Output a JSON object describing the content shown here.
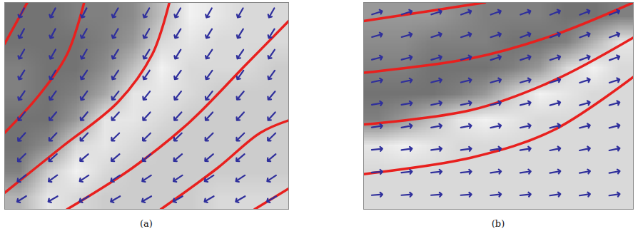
{
  "chart_data": [
    {
      "type": "quiver",
      "caption": "(a)",
      "xlim": [
        0,
        100
      ],
      "ylim": [
        0,
        100
      ],
      "tick_labels": false,
      "image": {
        "range": [
          0,
          1
        ],
        "rows": [
          [
            0.45,
            0.45,
            0.5,
            0.5,
            0.55,
            0.75,
            0.95,
            0.9,
            0.85,
            0.85
          ],
          [
            0.45,
            0.45,
            0.45,
            0.5,
            0.6,
            0.85,
            0.9,
            0.85,
            0.85,
            0.85
          ],
          [
            0.5,
            0.45,
            0.45,
            0.55,
            0.75,
            0.95,
            0.85,
            0.85,
            0.85,
            0.8
          ],
          [
            0.5,
            0.45,
            0.5,
            0.65,
            0.9,
            0.9,
            0.85,
            0.8,
            0.8,
            0.8
          ],
          [
            0.45,
            0.45,
            0.6,
            0.9,
            0.9,
            0.85,
            0.8,
            0.8,
            0.8,
            0.8
          ],
          [
            0.45,
            0.55,
            0.85,
            0.9,
            0.85,
            0.8,
            0.8,
            0.8,
            0.8,
            0.8
          ],
          [
            0.5,
            0.8,
            0.95,
            0.85,
            0.8,
            0.8,
            0.8,
            0.8,
            0.8,
            0.8
          ],
          [
            0.7,
            0.9,
            0.85,
            0.8,
            0.8,
            0.8,
            0.8,
            0.85,
            0.85,
            0.85
          ]
        ]
      },
      "arrows": {
        "color": "#2f2f9c",
        "x": [
          6,
          17,
          28,
          39,
          50,
          61,
          72,
          83,
          94
        ],
        "y": [
          95,
          85,
          75,
          65,
          55,
          45,
          35,
          25,
          15,
          5
        ],
        "angles": [
          [
            208,
            208,
            208,
            210,
            210,
            210,
            210,
            210,
            210
          ],
          [
            208,
            208,
            210,
            210,
            210,
            212,
            212,
            212,
            212
          ],
          [
            210,
            210,
            210,
            212,
            212,
            212,
            214,
            214,
            214
          ],
          [
            212,
            212,
            214,
            214,
            214,
            216,
            216,
            216,
            216
          ],
          [
            214,
            216,
            216,
            218,
            218,
            218,
            218,
            220,
            220
          ],
          [
            218,
            220,
            220,
            222,
            222,
            222,
            222,
            222,
            222
          ],
          [
            222,
            224,
            224,
            226,
            226,
            226,
            226,
            226,
            226
          ],
          [
            226,
            228,
            230,
            230,
            230,
            230,
            230,
            230,
            230
          ],
          [
            232,
            234,
            236,
            236,
            236,
            236,
            236,
            236,
            236
          ],
          [
            238,
            240,
            240,
            240,
            240,
            240,
            240,
            240,
            240
          ]
        ]
      },
      "curves": {
        "color": "#e8201e",
        "lines": [
          {
            "x": [
              0,
              8
            ],
            "y": [
              80,
              100
            ]
          },
          {
            "x": [
              0,
              12,
              22,
              28
            ],
            "y": [
              37,
              55,
              75,
              100
            ]
          },
          {
            "x": [
              0,
              20,
              40,
              52,
              58
            ],
            "y": [
              8,
              30,
              52,
              75,
              100
            ]
          },
          {
            "x": [
              22,
              45,
              65,
              85,
              100
            ],
            "y": [
              0,
              20,
              42,
              70,
              91
            ]
          },
          {
            "x": [
              55,
              75,
              90,
              100
            ],
            "y": [
              0,
              20,
              37,
              43
            ]
          },
          {
            "x": [
              88,
              100
            ],
            "y": [
              0,
              10
            ]
          }
        ]
      }
    },
    {
      "type": "quiver",
      "caption": "(b)",
      "xlim": [
        0,
        100
      ],
      "ylim": [
        0,
        100
      ],
      "tick_labels": false,
      "image": {
        "range": [
          0,
          1
        ],
        "rows": [
          [
            0.6,
            0.6,
            0.6,
            0.55,
            0.5,
            0.5,
            0.5,
            0.45,
            0.45,
            0.5
          ],
          [
            0.55,
            0.55,
            0.5,
            0.5,
            0.5,
            0.45,
            0.45,
            0.5,
            0.7,
            0.9
          ],
          [
            0.5,
            0.5,
            0.45,
            0.45,
            0.45,
            0.5,
            0.6,
            0.85,
            0.95,
            0.85
          ],
          [
            0.45,
            0.45,
            0.45,
            0.5,
            0.6,
            0.8,
            0.95,
            0.9,
            0.85,
            0.85
          ],
          [
            0.5,
            0.6,
            0.75,
            0.9,
            0.95,
            0.9,
            0.85,
            0.85,
            0.85,
            0.85
          ],
          [
            0.9,
            0.95,
            0.9,
            0.85,
            0.85,
            0.85,
            0.85,
            0.85,
            0.85,
            0.85
          ],
          [
            0.85,
            0.85,
            0.85,
            0.85,
            0.85,
            0.85,
            0.85,
            0.85,
            0.85,
            0.85
          ],
          [
            0.85,
            0.85,
            0.85,
            0.85,
            0.85,
            0.85,
            0.85,
            0.85,
            0.85,
            0.85
          ]
        ]
      },
      "arrows": {
        "color": "#2f2f9c",
        "x": [
          5,
          16,
          27,
          38,
          49,
          60,
          71,
          82,
          93
        ],
        "y": [
          95,
          84,
          73,
          62,
          51,
          40,
          29,
          18,
          7
        ],
        "angles": [
          [
            72,
            72,
            72,
            70,
            70,
            70,
            68,
            68,
            68
          ],
          [
            74,
            74,
            72,
            72,
            72,
            70,
            70,
            70,
            70
          ],
          [
            76,
            76,
            74,
            74,
            72,
            72,
            72,
            70,
            70
          ],
          [
            78,
            78,
            76,
            76,
            74,
            74,
            72,
            72,
            72
          ],
          [
            80,
            80,
            78,
            78,
            76,
            76,
            74,
            74,
            74
          ],
          [
            82,
            80,
            80,
            80,
            78,
            78,
            76,
            76,
            76
          ],
          [
            84,
            82,
            82,
            82,
            80,
            80,
            78,
            78,
            78
          ],
          [
            86,
            84,
            84,
            84,
            82,
            82,
            80,
            80,
            80
          ],
          [
            86,
            86,
            86,
            86,
            84,
            84,
            82,
            82,
            82
          ]
        ]
      },
      "curves": {
        "color": "#e8201e",
        "lines": [
          {
            "x": [
              0,
              30,
              45
            ],
            "y": [
              91,
              97,
              100
            ]
          },
          {
            "x": [
              0,
              40,
              70,
              100
            ],
            "y": [
              66,
              73,
              84,
              100
            ]
          },
          {
            "x": [
              0,
              40,
              70,
              100
            ],
            "y": [
              41,
              48,
              62,
              83
            ]
          },
          {
            "x": [
              0,
              40,
              70,
              100
            ],
            "y": [
              17,
              25,
              38,
              64
            ]
          }
        ]
      }
    }
  ]
}
